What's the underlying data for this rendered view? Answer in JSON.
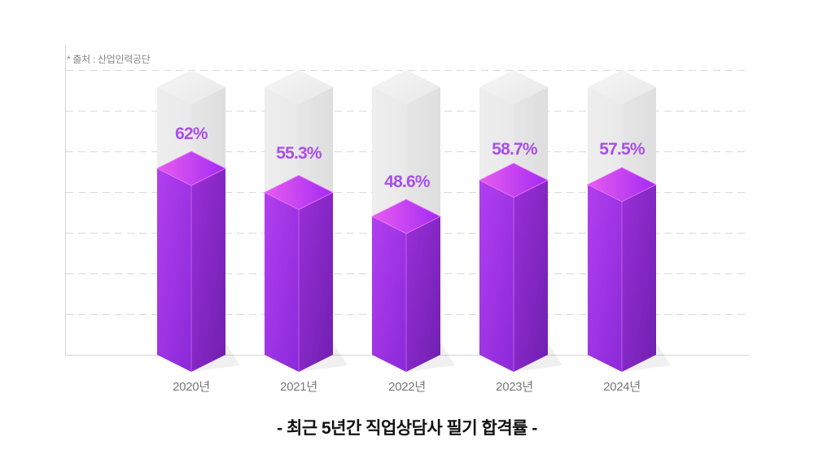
{
  "source_note": "* 출처 : 산업인력공단",
  "title": "- 최근 5년간 직업상담사 필기 합격률 -",
  "colors": {
    "bar_front": "#9b2fe6",
    "bar_side": "#7d22c2",
    "bar_top_left": "#e255f2",
    "bar_top_right": "#a22df0",
    "ghost": "#e8e8e8",
    "label": "#a94fe8",
    "grid": "#d6d6d6"
  },
  "bars": [
    {
      "year": "2020년",
      "label": "62%"
    },
    {
      "year": "2021년",
      "label": "55.3%"
    },
    {
      "year": "2022년",
      "label": "48.6%"
    },
    {
      "year": "2023년",
      "label": "58.7%"
    },
    {
      "year": "2024년",
      "label": "57.5%"
    }
  ],
  "chart_data": {
    "type": "bar",
    "title": "- 최근 5년간 직업상담사 필기 합격률 -",
    "subtitle": "* 출처 : 산업인력공단",
    "categories": [
      "2020년",
      "2021년",
      "2022년",
      "2023년",
      "2024년"
    ],
    "values": [
      62,
      55.3,
      48.6,
      58.7,
      57.5
    ],
    "value_labels": [
      "62%",
      "55.3%",
      "48.6%",
      "58.7%",
      "57.5%"
    ],
    "xlabel": "",
    "ylabel": "",
    "ylim": [
      0,
      100
    ],
    "grid": true,
    "legend": null,
    "style": "3d isometric columns with translucent background capacity columns"
  }
}
